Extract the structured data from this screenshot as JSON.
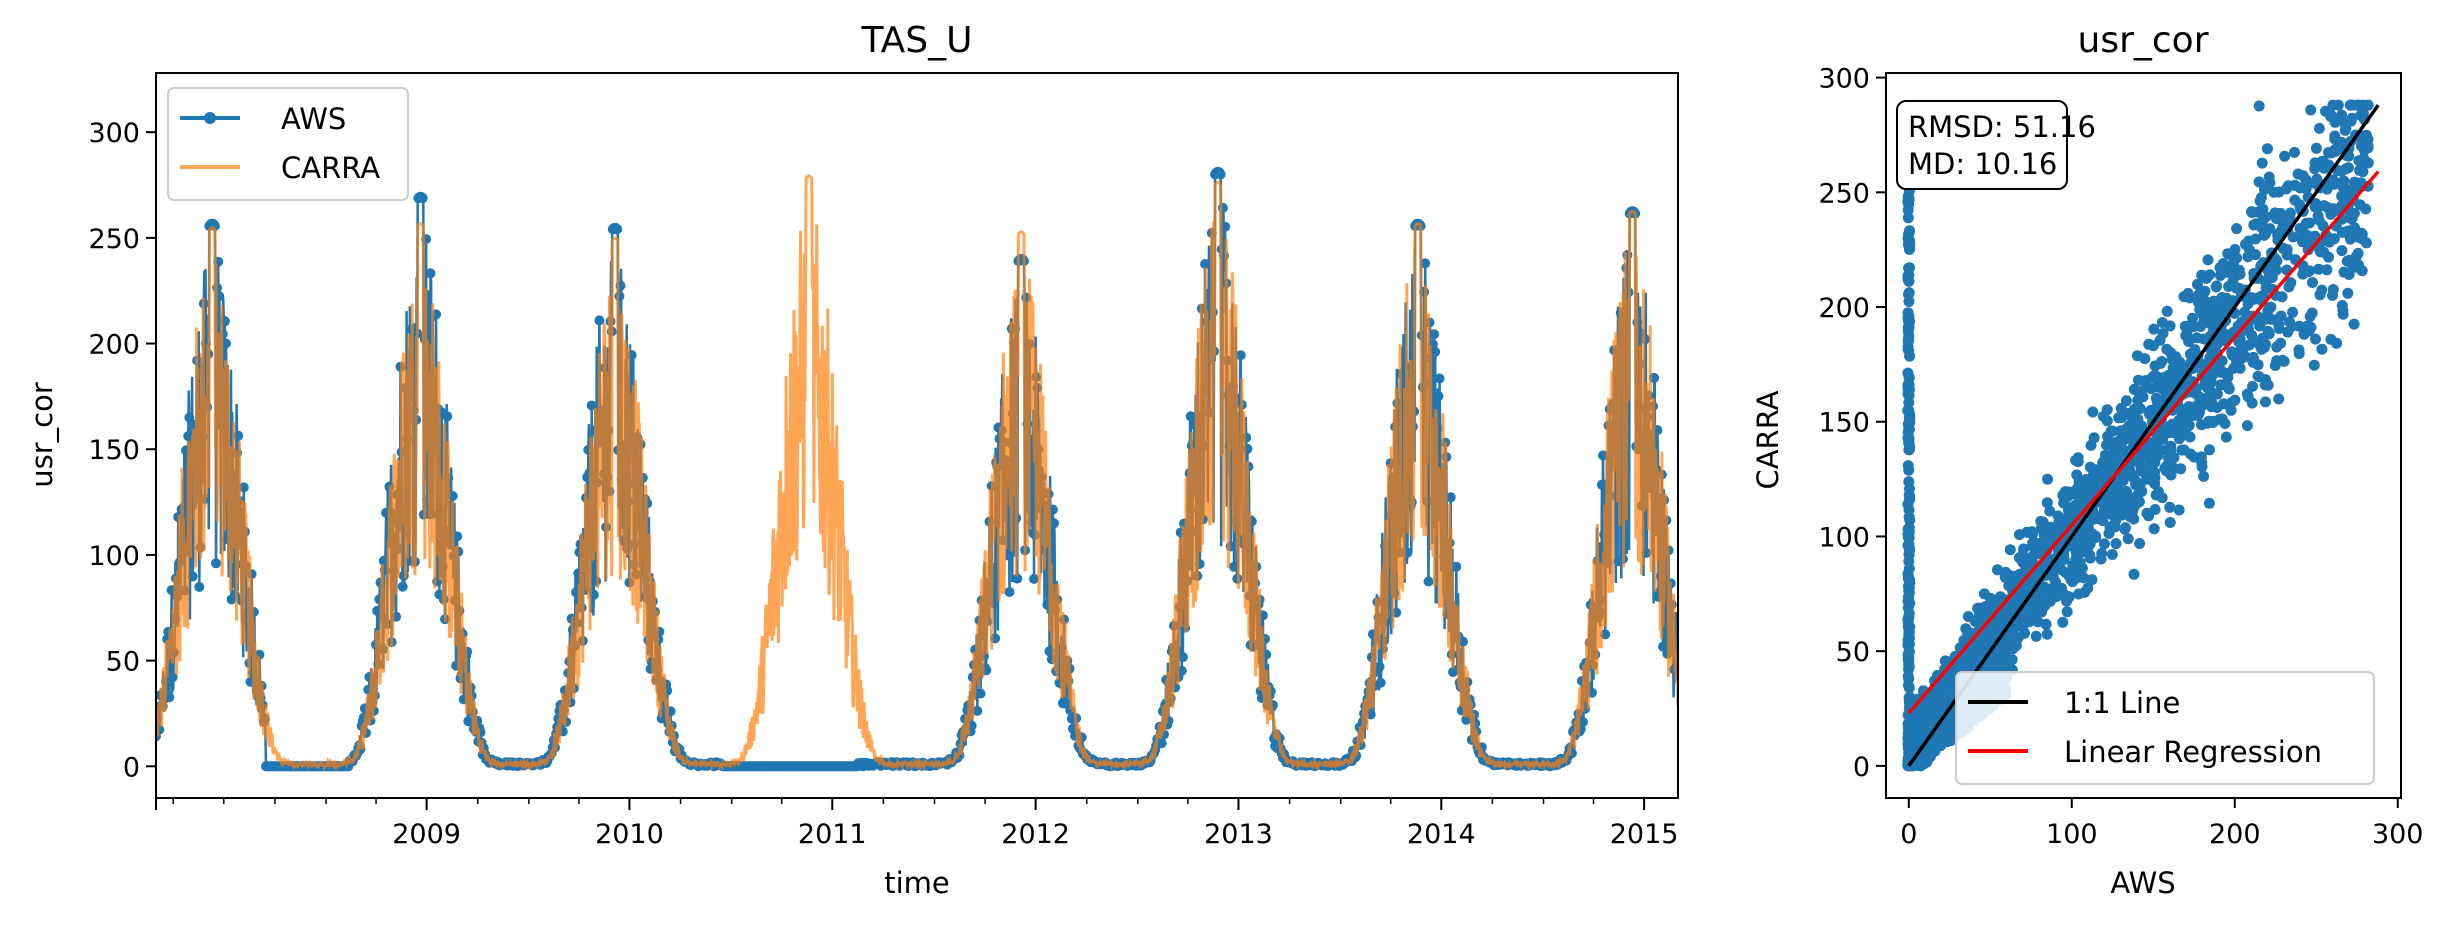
{
  "chart_data": [
    {
      "type": "line",
      "title": "TAS_U",
      "xlabel": "time",
      "ylabel": "usr_cor",
      "x_tick_labels": [
        "2009",
        "2010",
        "2011",
        "2012",
        "2013",
        "2014",
        "2015"
      ],
      "y_tick_labels": [
        "0",
        "50",
        "100",
        "150",
        "200",
        "250",
        "300"
      ],
      "xlim": [
        "2008-03-01",
        "2015-08-31"
      ],
      "ylim": [
        -15,
        328
      ],
      "grid": false,
      "legend": "upper-left",
      "series": [
        {
          "name": "AWS",
          "color": "#1f77b4",
          "marker": "circle",
          "seasonal_peaks": [
            {
              "date": "2008-06-10",
              "value": 262
            },
            {
              "date": "2009-06-20",
              "value": 275
            },
            {
              "date": "2010-06-05",
              "value": 260
            },
            {
              "date": "2012-06-05",
              "value": 245
            },
            {
              "date": "2013-05-25",
              "value": 287
            },
            {
              "date": "2014-05-20",
              "value": 262
            },
            {
              "date": "2015-06-10",
              "value": 268
            }
          ],
          "gap_periods": [
            {
              "start": "2008-09-15",
              "end": "2009-02-10",
              "value": 0
            },
            {
              "start": "2010-12-15",
              "end": "2011-08-15",
              "value": 0
            }
          ]
        },
        {
          "name": "CARRA",
          "color": "#ff7f0e",
          "seasonal_peaks": [
            {
              "date": "2008-06-10",
              "value": 260
            },
            {
              "date": "2009-06-20",
              "value": 262
            },
            {
              "date": "2010-06-05",
              "value": 255
            },
            {
              "date": "2011-05-20",
              "value": 285
            },
            {
              "date": "2012-06-05",
              "value": 258
            },
            {
              "date": "2013-05-25",
              "value": 282
            },
            {
              "date": "2014-05-20",
              "value": 262
            },
            {
              "date": "2015-06-10",
              "value": 268
            }
          ]
        }
      ]
    },
    {
      "type": "scatter",
      "title": "usr_cor",
      "xlabel": "AWS",
      "ylabel": "CARRA",
      "x_tick_labels": [
        "0",
        "100",
        "200",
        "300"
      ],
      "y_tick_labels": [
        "0",
        "50",
        "100",
        "150",
        "200",
        "250",
        "300"
      ],
      "xlim": [
        -14,
        302
      ],
      "ylim": [
        -14,
        302
      ],
      "annotation_lines": [
        "RMSD: 51.16",
        "MD: 10.16"
      ],
      "legend": "lower-right",
      "lines": [
        {
          "name": "1:1 Line",
          "color": "#000000",
          "x": [
            0,
            288
          ],
          "y": [
            0,
            288
          ]
        },
        {
          "name": "Linear Regression",
          "color": "#ff0000",
          "x": [
            0,
            288
          ],
          "y": [
            23,
            259
          ]
        }
      ],
      "points_color": "#1f77b4"
    }
  ]
}
